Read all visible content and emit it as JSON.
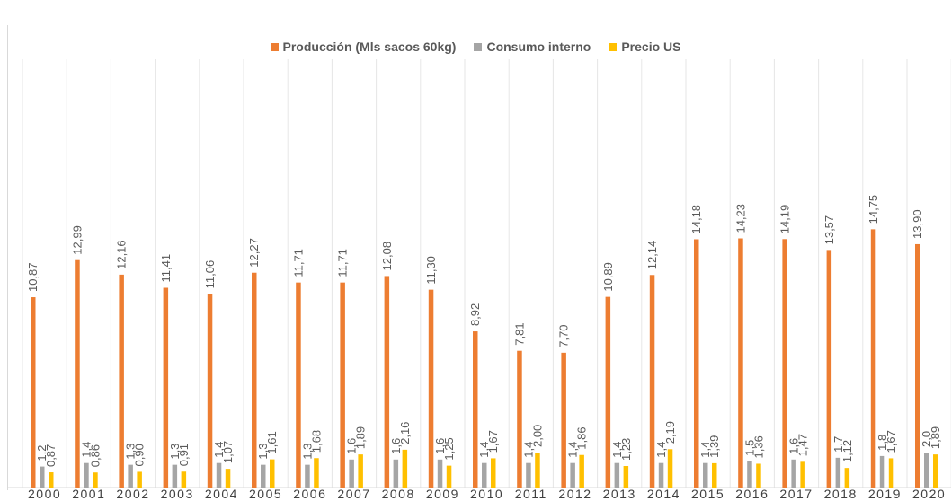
{
  "chart_data": {
    "type": "bar",
    "categories": [
      "2000",
      "2001",
      "2002",
      "2003",
      "2004",
      "2005",
      "2006",
      "2007",
      "2008",
      "2009",
      "2010",
      "2011",
      "2012",
      "2013",
      "2014",
      "2015",
      "2016",
      "2017",
      "2018",
      "2019",
      "2020"
    ],
    "series": [
      {
        "name": "Producción (Mls sacos 60kg)",
        "color": "#ED7D31",
        "values": [
          10.87,
          12.99,
          12.16,
          11.41,
          11.06,
          12.27,
          11.71,
          11.71,
          12.08,
          11.3,
          8.92,
          7.81,
          7.7,
          10.89,
          12.14,
          14.18,
          14.23,
          14.19,
          13.57,
          14.75,
          13.9
        ],
        "labels": [
          "10,87",
          "12,99",
          "12,16",
          "11,41",
          "11,06",
          "12,27",
          "11,71",
          "11,71",
          "12,08",
          "11,30",
          "8,92",
          "7,81",
          "7,70",
          "10,89",
          "12,14",
          "14,18",
          "14,23",
          "14,19",
          "13,57",
          "14,75",
          "13,90"
        ]
      },
      {
        "name": "Consumo interno",
        "color": "#A5A5A5",
        "values": [
          1.2,
          1.4,
          1.3,
          1.3,
          1.4,
          1.3,
          1.3,
          1.6,
          1.6,
          1.6,
          1.4,
          1.4,
          1.4,
          1.4,
          1.4,
          1.4,
          1.5,
          1.6,
          1.7,
          1.8,
          2.0
        ],
        "labels": [
          "1,2",
          "1,4",
          "1,3",
          "1,3",
          "1,4",
          "1,3",
          "1,3",
          "1,6",
          "1,6",
          "1,6",
          "1,4",
          "1,4",
          "1,4",
          "1,4",
          "1,4",
          "1,4",
          "1,5",
          "1,6",
          "1,7",
          "1,8",
          "2,0"
        ]
      },
      {
        "name": "Precio US",
        "color": "#FFC000",
        "values": [
          0.87,
          0.86,
          0.9,
          0.91,
          1.07,
          1.61,
          1.68,
          1.89,
          2.16,
          1.25,
          1.67,
          2.0,
          1.86,
          1.23,
          2.19,
          1.39,
          1.36,
          1.47,
          1.12,
          1.67,
          1.89
        ],
        "labels": [
          "0,87",
          "0,86",
          "0,90",
          "0,91",
          "1,07",
          "1,61",
          "1,68",
          "1,89",
          "2,16",
          "1,25",
          "1,67",
          "2,00",
          "1,86",
          "1,23",
          "2,19",
          "1,39",
          "1,36",
          "1,47",
          "1,12",
          "1,67",
          "1,89"
        ]
      }
    ],
    "ylim": [
      0,
      16.5
    ],
    "grid": "vertical-category-lines",
    "legend_position": "top",
    "title": "",
    "xlabel": "",
    "ylabel": ""
  }
}
